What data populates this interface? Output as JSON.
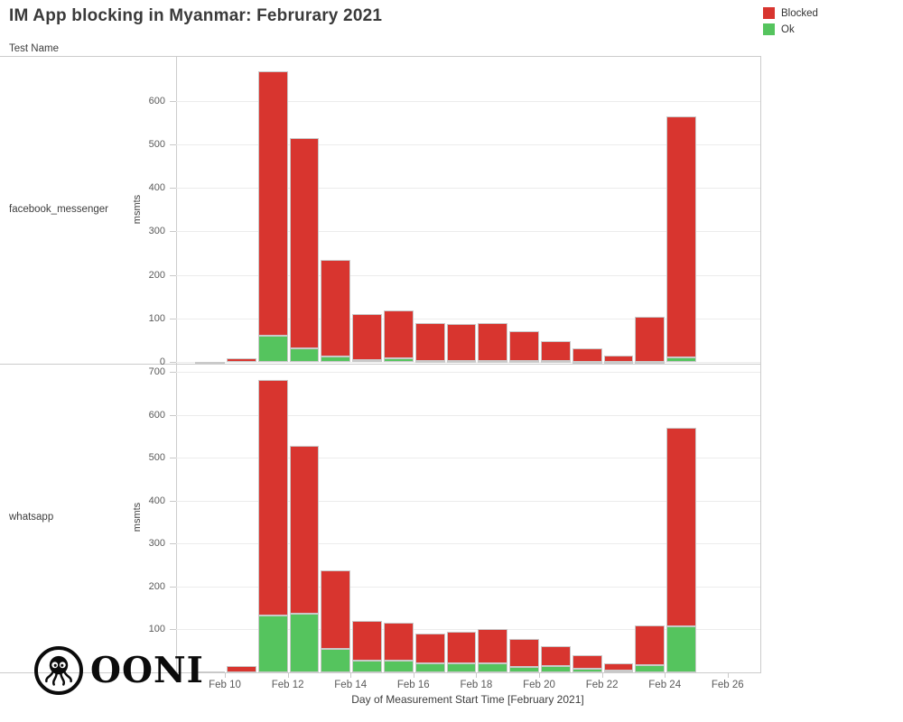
{
  "title": "IM App blocking in Myanmar: Februrary 2021",
  "facet_header": "Test Name",
  "legend": {
    "items": [
      {
        "label": "Blocked",
        "color": "#d8352f"
      },
      {
        "label": "Ok",
        "color": "#55c45e"
      }
    ]
  },
  "x_axis": {
    "title": "Day of Measurement Start Time [February 2021]",
    "tick_labels": [
      "Feb 10",
      "Feb 12",
      "Feb 14",
      "Feb 16",
      "Feb 18",
      "Feb 20",
      "Feb 22",
      "Feb 24",
      "Feb 26"
    ],
    "tick_days": [
      10,
      12,
      14,
      16,
      18,
      20,
      22,
      24,
      26
    ]
  },
  "y_axis_title": "msmts",
  "logo_text": "OONI",
  "colors": {
    "blocked": "#d8352f",
    "ok": "#55c45e",
    "grid": "#ececec",
    "axis": "#cccccc"
  },
  "chart_data": [
    {
      "type": "bar",
      "stacked": true,
      "facet_label": "facebook_messenger",
      "ylabel": "msmts",
      "ylim": [
        0,
        700
      ],
      "y_ticks": [
        0,
        100,
        200,
        300,
        400,
        500,
        600
      ],
      "x_days": [
        9,
        10,
        11,
        12,
        13,
        14,
        15,
        16,
        17,
        18,
        19,
        20,
        21,
        22,
        23,
        24
      ],
      "legend_position": "top-right",
      "grid": true,
      "series": [
        {
          "name": "Ok",
          "color": "#55c45e",
          "values": [
            0,
            0,
            60,
            32,
            12,
            5,
            8,
            3,
            3,
            3,
            2,
            3,
            1,
            1,
            1,
            10
          ]
        },
        {
          "name": "Blocked",
          "color": "#d8352f",
          "values": [
            1,
            9,
            608,
            483,
            222,
            106,
            110,
            87,
            84,
            87,
            68,
            45,
            31,
            13,
            102,
            555
          ]
        }
      ]
    },
    {
      "type": "bar",
      "stacked": true,
      "facet_label": "whatsapp",
      "ylabel": "msmts",
      "ylim": [
        0,
        700
      ],
      "y_ticks": [
        100,
        200,
        300,
        400,
        500,
        600,
        700
      ],
      "x_days": [
        9,
        10,
        11,
        12,
        13,
        14,
        15,
        16,
        17,
        18,
        19,
        20,
        21,
        22,
        23,
        24
      ],
      "legend_position": "top-right",
      "grid": true,
      "series": [
        {
          "name": "Ok",
          "color": "#55c45e",
          "values": [
            0,
            0,
            132,
            136,
            54,
            27,
            28,
            21,
            21,
            20,
            13,
            15,
            8,
            5,
            16,
            108
          ]
        },
        {
          "name": "Blocked",
          "color": "#d8352f",
          "values": [
            2,
            15,
            550,
            392,
            184,
            92,
            87,
            69,
            74,
            80,
            64,
            45,
            31,
            15,
            94,
            462
          ]
        }
      ]
    }
  ]
}
